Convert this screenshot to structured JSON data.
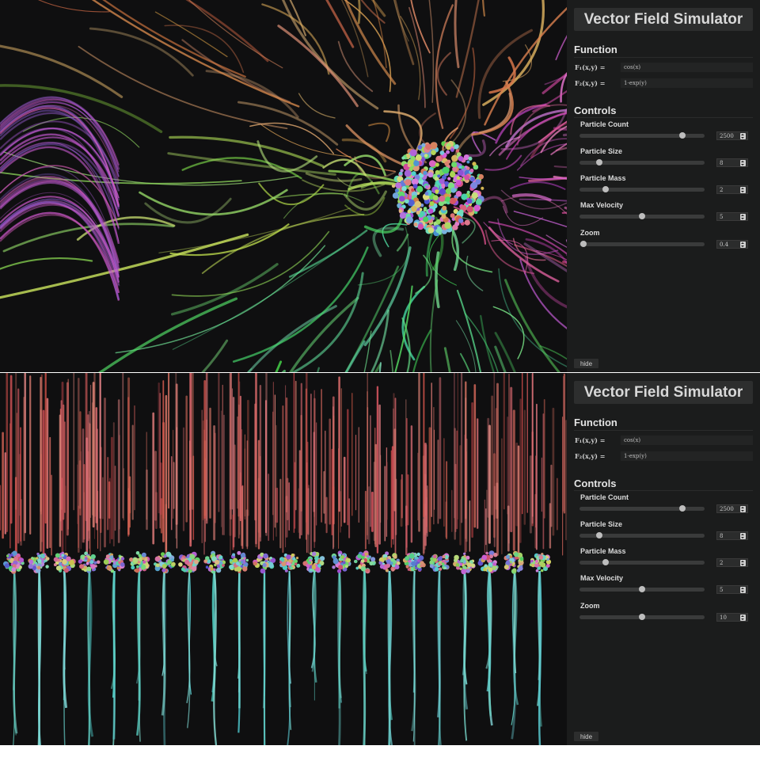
{
  "panels": [
    {
      "title": "Vector Field Simulator",
      "function_heading": "Function",
      "f1_label": "F₁(x,y) =",
      "f1_value": "cos(x)",
      "f2_label": "F₂(x,y) =",
      "f2_value": "1-exp(y)",
      "controls_heading": "Controls",
      "controls": [
        {
          "label": "Particle Count",
          "value": "2500",
          "level": 0.82
        },
        {
          "label": "Particle Size",
          "value": "8",
          "level": 0.16
        },
        {
          "label": "Particle Mass",
          "value": "2",
          "level": 0.21
        },
        {
          "label": "Max Velocity",
          "value": "5",
          "level": 0.5
        },
        {
          "label": "Zoom",
          "value": "0.4",
          "level": 0.03
        }
      ],
      "hide_label": "hide"
    },
    {
      "title": "Vector Field Simulator",
      "function_heading": "Function",
      "f1_label": "F₁(x,y) =",
      "f1_value": "cos(x)",
      "f2_label": "F₂(x,y) =",
      "f2_value": "1-exp(y)",
      "controls_heading": "Controls",
      "controls": [
        {
          "label": "Particle Count",
          "value": "2500",
          "level": 0.82
        },
        {
          "label": "Particle Size",
          "value": "8",
          "level": 0.16
        },
        {
          "label": "Particle Mass",
          "value": "2",
          "level": 0.21
        },
        {
          "label": "Max Velocity",
          "value": "5",
          "level": 0.5
        },
        {
          "label": "Zoom",
          "value": "10",
          "level": 0.5
        }
      ],
      "hide_label": "hide"
    }
  ],
  "colors": {
    "canvas_bg": "#0f0f10",
    "sidebar_bg": "#1b1c1c",
    "accent_green": "#7fd36b",
    "accent_pink": "#e07aa8",
    "accent_teal": "#5fd3c8",
    "accent_red": "#e06060"
  }
}
